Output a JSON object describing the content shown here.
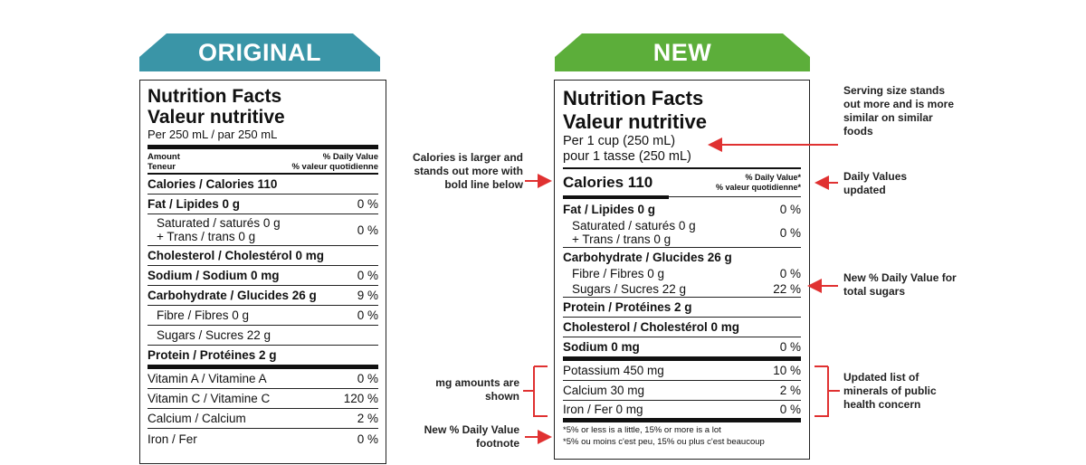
{
  "banners": {
    "original": "ORIGINAL",
    "new": "NEW"
  },
  "original": {
    "title_en": "Nutrition Facts",
    "title_fr": "Valeur nutritive",
    "serving": "Per 250 mL  / par 250 mL",
    "amount_en": "Amount",
    "amount_fr": "Teneur",
    "dv_en": "% Daily Value",
    "dv_fr": "% valeur quotidienne",
    "calories": "Calories / Calories 110",
    "rows": [
      {
        "label": "Fat / Lipides 0 g",
        "pct": "0 %"
      },
      {
        "label": "Saturated / saturés 0 g",
        "label2": "+ Trans / trans 0 g",
        "pct": "0 %"
      },
      {
        "label": "Cholesterol / Cholestérol 0 mg",
        "pct": ""
      },
      {
        "label": "Sodium / Sodium 0 mg",
        "pct": "0 %"
      },
      {
        "label": "Carbohydrate / Glucides 26 g",
        "pct": "9 %"
      },
      {
        "label": "Fibre / Fibres 0 g",
        "pct": "0 %"
      },
      {
        "label": "Sugars / Sucres 22 g",
        "pct": ""
      },
      {
        "label": "Protein / Protéines 2 g",
        "pct": ""
      },
      {
        "label": "Vitamin A / Vitamine A",
        "pct": "0 %"
      },
      {
        "label": "Vitamin C / Vitamine C",
        "pct": "120 %"
      },
      {
        "label": "Calcium / Calcium",
        "pct": "2 %"
      },
      {
        "label": "Iron / Fer",
        "pct": "0 %"
      }
    ]
  },
  "new": {
    "title_en": "Nutrition Facts",
    "title_fr": "Valeur nutritive",
    "serving_en": "Per 1 cup (250 mL)",
    "serving_fr": "pour 1 tasse (250 mL)",
    "calories": "Calories 110",
    "dv_en": "% Daily Value*",
    "dv_fr": "% valeur quotidienne*",
    "rows": [
      {
        "label": "Fat / Lipides 0 g",
        "pct": "0 %"
      },
      {
        "label": "Saturated / saturés 0 g",
        "label2": "+ Trans / trans 0 g",
        "pct": "0 %"
      },
      {
        "label": "Carbohydrate / Glucides 26 g",
        "pct": ""
      },
      {
        "label": "Fibre / Fibres 0 g",
        "pct": "0 %"
      },
      {
        "label": "Sugars / Sucres 22 g",
        "pct": "22 %"
      },
      {
        "label": "Protein / Protéines 2 g",
        "pct": ""
      },
      {
        "label": "Cholesterol / Cholestérol 0 mg",
        "pct": ""
      },
      {
        "label": "Sodium 0 mg",
        "pct": "0 %"
      },
      {
        "label": "Potassium 450 mg",
        "pct": "10 %"
      },
      {
        "label": "Calcium 30 mg",
        "pct": "2 %"
      },
      {
        "label": "Iron / Fer 0 mg",
        "pct": "0 %"
      }
    ],
    "footnote_en": "*5% or less is a little, 15% or more is a lot",
    "footnote_fr": "*5% ou moins c'est peu, 15% ou plus c'est beaucoup"
  },
  "annotations": {
    "calories": "Calories is larger and stands out more with bold line below",
    "mg": "mg amounts are shown",
    "footnote": "New % Daily Value footnote",
    "serving": "Serving size stands out more and is more similar on similar foods",
    "dv": "Daily Values updated",
    "sugars": "New % Daily Value for total sugars",
    "minerals": "Updated list of minerals of public health concern"
  },
  "colors": {
    "original_banner": "#3a95a7",
    "new_banner": "#5cae3a",
    "arrow": "#e03131"
  }
}
